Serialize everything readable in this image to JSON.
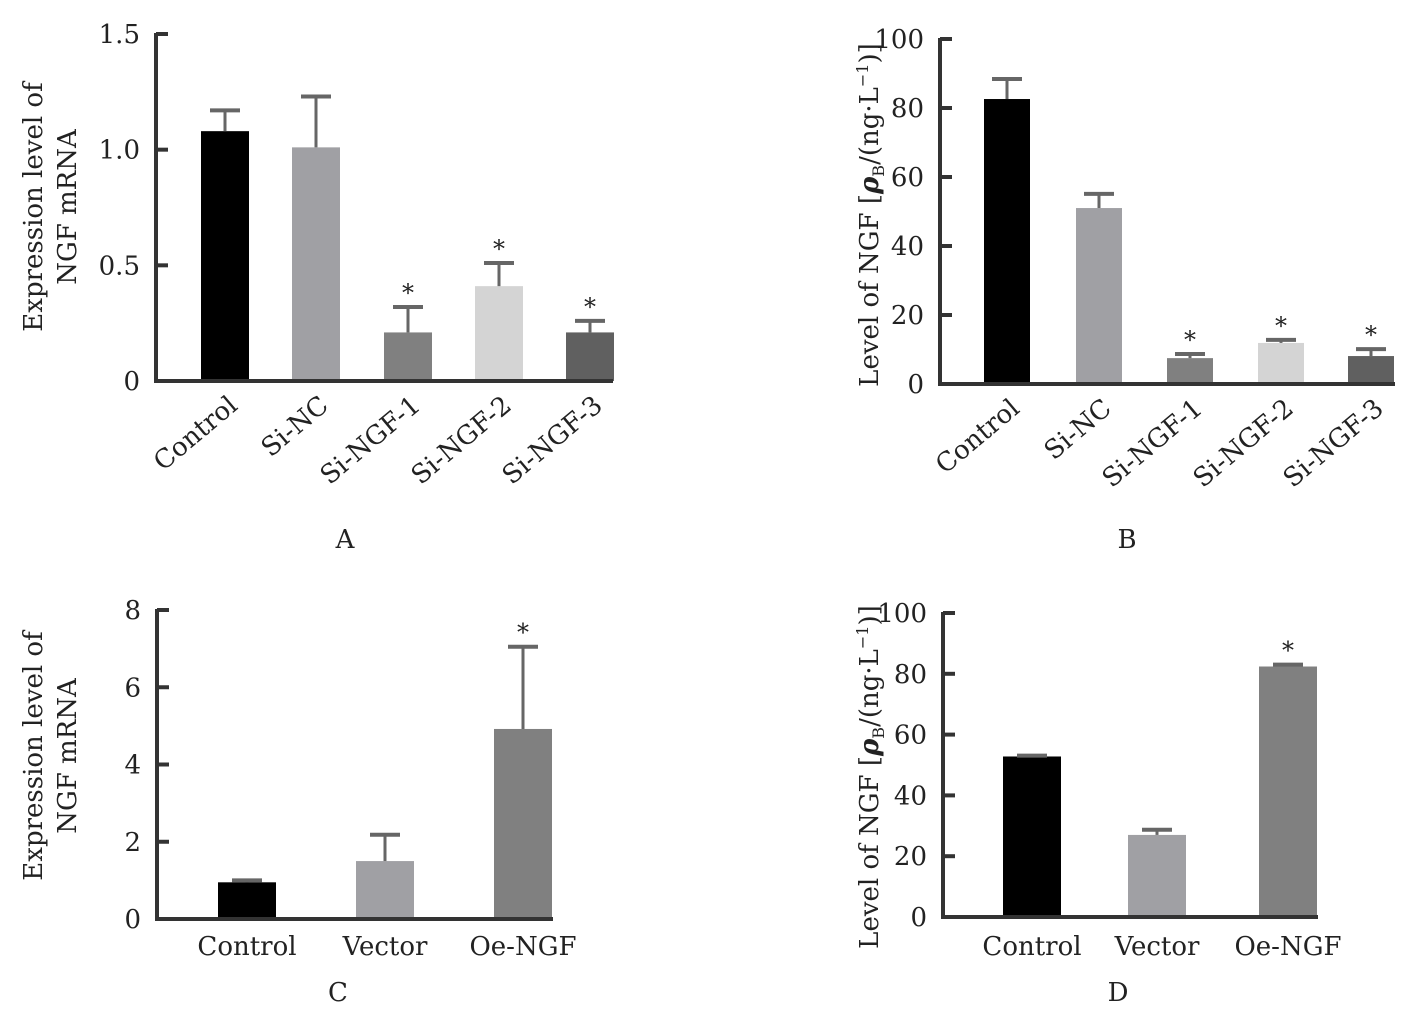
{
  "chart_data": [
    {
      "panel": "A",
      "type": "bar",
      "ylabel_lines": [
        "Expression level of",
        "NGF mRNA"
      ],
      "ylim": [
        0,
        1.5
      ],
      "yticks": [
        0,
        0.5,
        1.0,
        1.5
      ],
      "ytick_labels": [
        "0",
        "0.5",
        "1.0",
        "1.5"
      ],
      "categories": [
        "Control",
        "Si-NC",
        "Si-NGF-1",
        "Si-NGF-2",
        "Si-NGF-3"
      ],
      "values": [
        1.08,
        1.01,
        0.21,
        0.41,
        0.21
      ],
      "error_upper": [
        1.17,
        1.23,
        0.32,
        0.51,
        0.26
      ],
      "significance": [
        "",
        "",
        "*",
        "*",
        "*"
      ],
      "colors": [
        "#000000",
        "#a0a0a4",
        "#808080",
        "#d4d4d4",
        "#606060"
      ],
      "xtick_rotation": "diagonal"
    },
    {
      "panel": "B",
      "type": "bar",
      "ylabel_main": "Level of NGF [",
      "ylabel_rho": "ρ",
      "ylabel_sub": "B",
      "ylabel_rest": "/(ng·L",
      "ylabel_sup": "−1",
      "ylabel_end": ")]",
      "ylim": [
        0,
        100
      ],
      "yticks": [
        0,
        20,
        40,
        60,
        80,
        100
      ],
      "ytick_labels": [
        "0",
        "20",
        "40",
        "60",
        "80",
        "100"
      ],
      "categories": [
        "Control",
        "Si-NC",
        "Si-NGF-1",
        "Si-NGF-2",
        "Si-NGF-3"
      ],
      "values": [
        82.6,
        51.0,
        7.5,
        11.9,
        8.1
      ],
      "error_upper": [
        88.4,
        55.1,
        8.7,
        12.8,
        10.1
      ],
      "significance": [
        "",
        "",
        "*",
        "*",
        "*"
      ],
      "colors": [
        "#000000",
        "#a0a0a4",
        "#808080",
        "#d4d4d4",
        "#606060"
      ],
      "xtick_rotation": "diagonal"
    },
    {
      "panel": "C",
      "type": "bar",
      "ylabel_lines": [
        "Expression level of",
        "NGF mRNA"
      ],
      "ylim": [
        0,
        8
      ],
      "yticks": [
        0,
        2,
        4,
        6,
        8
      ],
      "ytick_labels": [
        "0",
        "2",
        "4",
        "6",
        "8"
      ],
      "categories": [
        "Control",
        "Vector",
        "Oe-NGF"
      ],
      "values": [
        0.95,
        1.5,
        4.92
      ],
      "error_upper": [
        1.0,
        2.18,
        7.05
      ],
      "significance": [
        "",
        "",
        "*"
      ],
      "colors": [
        "#000000",
        "#a0a0a4",
        "#808080"
      ],
      "xtick_rotation": "horizontal"
    },
    {
      "panel": "D",
      "type": "bar",
      "ylabel_main": "Level of NGF [",
      "ylabel_rho": "ρ",
      "ylabel_sub": "B",
      "ylabel_rest": "/(ng·L",
      "ylabel_sup": "−1",
      "ylabel_end": ")]",
      "ylim": [
        0,
        100
      ],
      "yticks": [
        0,
        20,
        40,
        60,
        80,
        100
      ],
      "ytick_labels": [
        "0",
        "20",
        "40",
        "60",
        "80",
        "100"
      ],
      "categories": [
        "Control",
        "Vector",
        "Oe-NGF"
      ],
      "values": [
        52.8,
        27.0,
        82.4
      ],
      "error_upper": [
        53.1,
        28.7,
        83.0
      ],
      "significance": [
        "",
        "",
        "*"
      ],
      "colors": [
        "#000000",
        "#a0a0a4",
        "#808080"
      ],
      "xtick_rotation": "horizontal"
    }
  ],
  "style": {
    "axis_color": "#333333",
    "error_color": "#666666"
  }
}
